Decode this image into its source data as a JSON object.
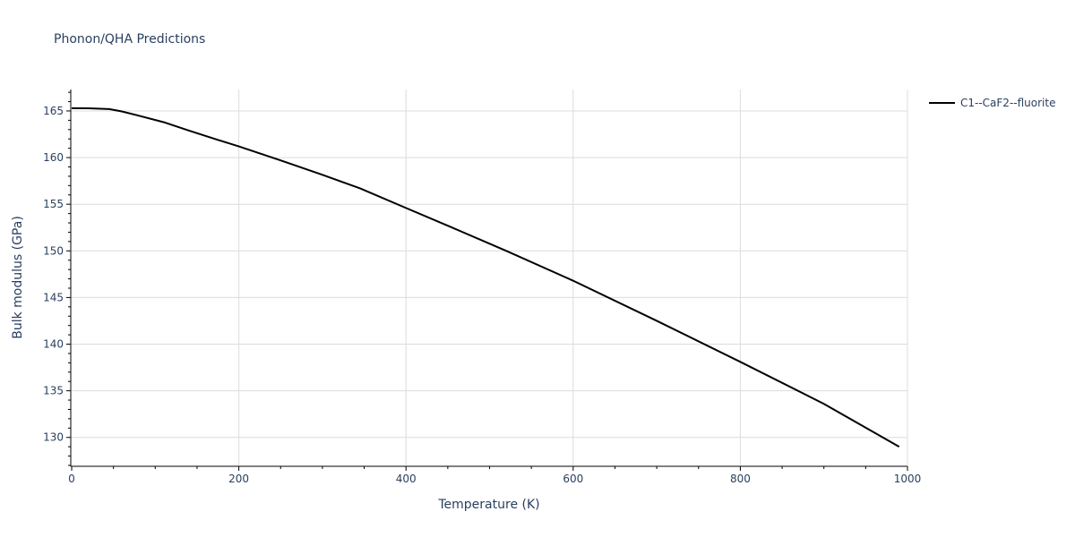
{
  "chart_data": {
    "type": "line",
    "title": "Phonon/QHA Predictions",
    "xlabel": "Temperature (K)",
    "ylabel": "Bulk modulus (GPa)",
    "xlim": [
      0,
      1000
    ],
    "ylim": [
      127,
      167.3
    ],
    "x_ticks": [
      0,
      200,
      400,
      600,
      800,
      1000
    ],
    "y_ticks": [
      130,
      135,
      140,
      145,
      150,
      155,
      160,
      165
    ],
    "grid": true,
    "legend_position": "top-right",
    "series": [
      {
        "name": "C1--CaF2--fluorite",
        "color": "#000000",
        "x": [
          0,
          20,
          45,
          60,
          80,
          110,
          140,
          175,
          200,
          250,
          300,
          345,
          400,
          450,
          520,
          600,
          700,
          800,
          900,
          990
        ],
        "y": [
          165.3,
          165.28,
          165.2,
          164.95,
          164.5,
          163.8,
          162.9,
          161.9,
          161.2,
          159.7,
          158.15,
          156.7,
          154.6,
          152.7,
          150.0,
          146.8,
          142.5,
          138.1,
          133.6,
          129.0
        ]
      }
    ]
  }
}
